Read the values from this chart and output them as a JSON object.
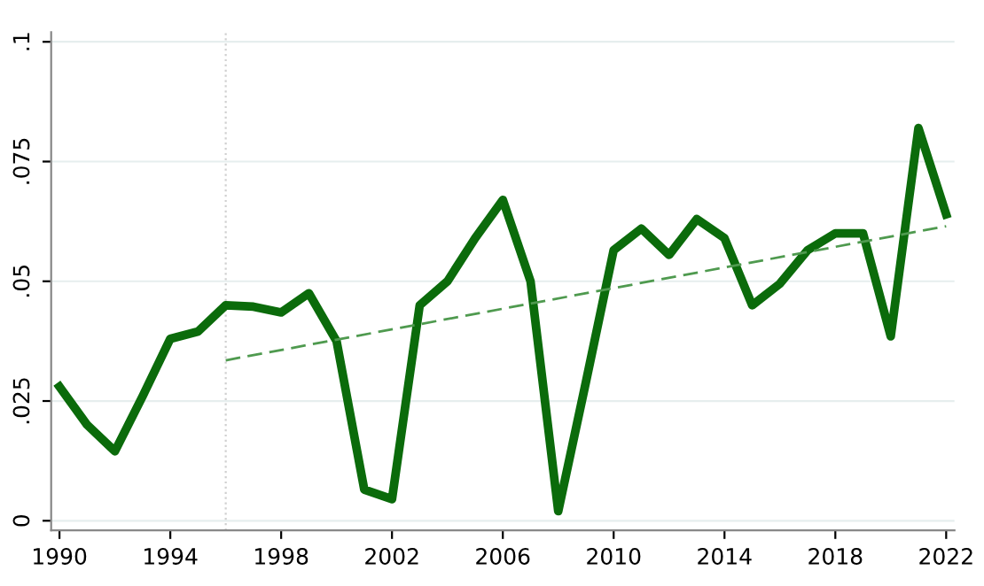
{
  "chart_data": {
    "type": "line",
    "x": [
      1990,
      1991,
      1992,
      1993,
      1994,
      1995,
      1996,
      1997,
      1998,
      1999,
      2000,
      2001,
      2002,
      2003,
      2004,
      2005,
      2006,
      2007,
      2008,
      2009,
      2010,
      2011,
      2012,
      2013,
      2014,
      2015,
      2016,
      2017,
      2018,
      2019,
      2020,
      2021,
      2022
    ],
    "series": [
      {
        "color": "#0b6b0b",
        "line_style": "solid",
        "values": [
          0.028,
          0.02,
          0.0145,
          0.026,
          0.038,
          0.0395,
          0.045,
          0.0447,
          0.0435,
          0.0475,
          0.0375,
          0.0065,
          0.0045,
          0.045,
          0.05,
          0.059,
          0.067,
          0.05,
          0.002,
          0.029,
          0.0565,
          0.061,
          0.0555,
          0.063,
          0.059,
          0.045,
          0.0495,
          0.0565,
          0.06,
          0.06,
          0.0385,
          0.082,
          0.064
        ]
      },
      {
        "type": "line",
        "color": "#4f9a4f",
        "line_style": "dashed",
        "x": [
          1996,
          2022
        ],
        "values": [
          0.0335,
          0.0615
        ]
      }
    ],
    "xlim": [
      1989.7,
      2022.3
    ],
    "xticks": [
      1990,
      1994,
      1998,
      2002,
      2006,
      2010,
      2014,
      2018,
      2022
    ],
    "ylim": [
      -0.002,
      0.102
    ],
    "yticks": [
      {
        "value": 0,
        "label": "0"
      },
      {
        "value": 0.025,
        "label": ".025"
      },
      {
        "value": 0.05,
        "label": ".05"
      },
      {
        "value": 0.075,
        "label": ".075"
      },
      {
        "value": 0.1,
        "label": ".1"
      }
    ],
    "grid": "y",
    "legend": false,
    "marker": "none",
    "ref_lines": [
      {
        "axis": "x",
        "value": 1996,
        "color": "#d0d0d0",
        "line_style": "dotted"
      }
    ]
  }
}
